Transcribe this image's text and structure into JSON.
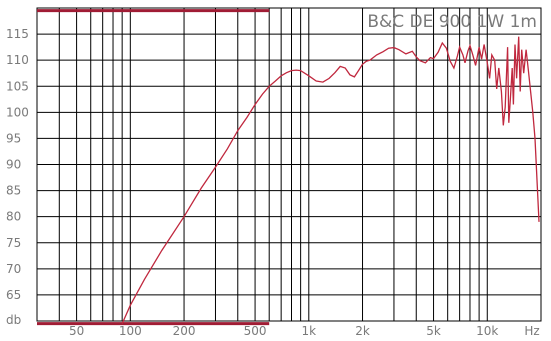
{
  "chart_data": {
    "type": "line",
    "title": "B&C DE 900 1W 1m",
    "ylabel": "db",
    "xunit_label": "Hz",
    "xscale": "log",
    "xlim": [
      30,
      20000
    ],
    "ylim": [
      60,
      120
    ],
    "y_ticks": [
      115,
      110,
      105,
      100,
      95,
      90,
      85,
      80,
      75,
      70,
      65
    ],
    "x_ticks": [
      {
        "value": 50,
        "label": "50"
      },
      {
        "value": 100,
        "label": "100"
      },
      {
        "value": 200,
        "label": "200"
      },
      {
        "value": 500,
        "label": "500"
      },
      {
        "value": 1000,
        "label": "1k"
      },
      {
        "value": 2000,
        "label": "2k"
      },
      {
        "value": 5000,
        "label": "5k"
      },
      {
        "value": 10000,
        "label": "10k"
      }
    ],
    "x_minor": [
      40,
      60,
      70,
      80,
      90,
      300,
      400,
      600,
      700,
      800,
      900,
      3000,
      4000,
      6000,
      7000,
      8000,
      9000
    ],
    "band_lines": {
      "y": [
        119.5,
        59.5
      ],
      "x_end": 600
    },
    "grid": true,
    "colors": {
      "curve": "#c0283e",
      "band": "#a01c34",
      "grid": "#000000",
      "text": "#7a7a7a"
    },
    "series": [
      {
        "x": [
          90,
          100,
          120,
          150,
          200,
          250,
          300,
          350,
          400,
          450,
          500,
          550,
          600,
          650,
          700,
          750,
          800,
          850,
          900,
          1000,
          1100,
          1200,
          1300,
          1400,
          1500,
          1600,
          1700,
          1800,
          1900,
          2000,
          2100,
          2200,
          2400,
          2600,
          2800,
          3000,
          3200,
          3500,
          3800,
          4000,
          4200,
          4500,
          4800,
          5000,
          5300,
          5600,
          5900,
          6200,
          6500,
          6800,
          7000,
          7300,
          7500,
          7800,
          8000,
          8300,
          8600,
          9000,
          9300,
          9600,
          10000,
          10300,
          10600,
          11000,
          11300,
          11600,
          12000,
          12300,
          12600,
          13000,
          13200,
          13500,
          13800,
          14000,
          14300,
          14600,
          15000,
          15300,
          15600,
          16000,
          16500,
          17000,
          17500,
          18000,
          18500,
          19000,
          19500
        ],
        "y": [
          59.5,
          63.0,
          68.0,
          73.5,
          80.0,
          85.5,
          89.5,
          93.0,
          96.5,
          99.0,
          101.5,
          103.5,
          105.0,
          106.0,
          107.0,
          107.6,
          108.0,
          108.1,
          108.0,
          107.0,
          106.0,
          105.8,
          106.5,
          107.6,
          108.8,
          108.5,
          107.2,
          106.8,
          108.0,
          109.2,
          109.8,
          110.0,
          111.0,
          111.6,
          112.3,
          112.4,
          112.0,
          111.2,
          111.7,
          110.6,
          109.9,
          109.5,
          110.5,
          110.3,
          111.5,
          113.3,
          112.3,
          109.8,
          108.5,
          110.8,
          112.5,
          111.0,
          109.5,
          111.8,
          112.8,
          111.0,
          109.0,
          112.5,
          110.2,
          113.0,
          109.5,
          106.5,
          111.0,
          110.0,
          104.5,
          108.5,
          104.0,
          97.5,
          101.0,
          112.5,
          98.0,
          103.0,
          108.5,
          101.5,
          113.0,
          106.5,
          114.5,
          104.0,
          112.0,
          107.5,
          112.0,
          108.0,
          104.0,
          100.0,
          95.0,
          87.0,
          79.0
        ]
      }
    ]
  }
}
